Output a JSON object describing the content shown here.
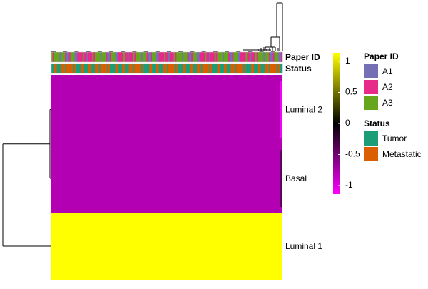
{
  "chart_data": {
    "type": "heatmap",
    "title": "",
    "rows": [
      "Luminal 2",
      "Basal",
      "Luminal 1"
    ],
    "matrix_row_values": [
      -0.7,
      -0.7,
      1
    ],
    "edge_samples": [
      {
        "row": "Luminal 2",
        "value": -0.97
      },
      {
        "row": "Basal",
        "value": -0.35
      }
    ],
    "sample_count": 170,
    "annotations": [
      {
        "name": "Paper ID",
        "levels": [
          "A1",
          "A2",
          "A3"
        ],
        "colors": {
          "A1": "#7570b3",
          "A2": "#e7298a",
          "A3": "#66a61e"
        },
        "pattern": [
          "A3",
          "A2",
          "A1",
          "A3",
          "A2",
          "A3",
          "A1",
          "A2",
          "A3",
          "A2",
          "A2",
          "A3",
          "A1",
          "A2",
          "A3",
          "A3",
          "A2",
          "A1",
          "A2",
          "A3",
          "A2",
          "A3",
          "A3",
          "A2",
          "A1",
          "A2",
          "A3",
          "A2",
          "A3",
          "A1"
        ]
      },
      {
        "name": "Status",
        "levels": [
          "Tumor",
          "Metastatic"
        ],
        "colors": {
          "Tumor": "#1b9e77",
          "Metastatic": "#d95f02"
        },
        "pattern": [
          "Tumor",
          "Metastatic",
          "Metastatic",
          "Tumor",
          "Tumor",
          "Metastatic",
          "Tumor",
          "Metastatic",
          "Metastatic",
          "Metastatic",
          "Tumor",
          "Tumor",
          "Metastatic",
          "Tumor",
          "Metastatic",
          "Tumor",
          "Metastatic",
          "Metastatic",
          "Tumor",
          "Metastatic",
          "Tumor",
          "Tumor",
          "Metastatic",
          "Tumor",
          "Metastatic"
        ]
      }
    ],
    "color_scale": {
      "min": -1,
      "mid": 0,
      "max": 1,
      "low_color": "#ff00ff",
      "mid_color": "#000000",
      "high_color": "#ffff00",
      "ticks": [
        1,
        0.5,
        0,
        -0.5,
        -1
      ],
      "tick_labels": [
        "1",
        "0.5",
        "0",
        "-0.5",
        "-1"
      ]
    },
    "row_dendrogram": true,
    "column_dendrogram": true,
    "legend_placement": "right"
  },
  "colors": {
    "heatmap_row_purple": "#800080",
    "heatmap_row_yellow": "#ffff00"
  }
}
